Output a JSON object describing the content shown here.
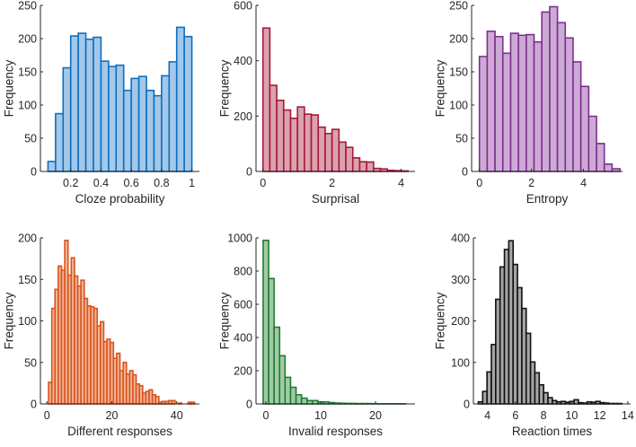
{
  "chart_data": [
    {
      "type": "bar",
      "id": "cloze",
      "xlabel": "Cloze probability",
      "ylabel": "Frequency",
      "bin_start": 0.05,
      "bin_width": 0.05,
      "values": [
        15,
        87,
        156,
        204,
        208,
        199,
        202,
        166,
        158,
        160,
        122,
        140,
        143,
        122,
        114,
        144,
        165,
        217,
        203
      ],
      "xlim": [
        0,
        1.05
      ],
      "ylim": [
        0,
        250
      ],
      "xticks": [
        0.2,
        0.4,
        0.6,
        0.8,
        1
      ],
      "xtick_labels": [
        "0.2",
        "0.4",
        "0.6",
        "0.8",
        "1"
      ],
      "yticks": [
        0,
        50,
        100,
        150,
        200,
        250
      ],
      "fill": "#a3c8ea",
      "edge": "#0f6fbf"
    },
    {
      "type": "bar",
      "id": "surprisal",
      "xlabel": "Surprisal",
      "ylabel": "Frequency",
      "bin_start": 0,
      "bin_width": 0.2,
      "values": [
        518,
        311,
        257,
        222,
        192,
        233,
        207,
        204,
        160,
        137,
        152,
        106,
        87,
        49,
        35,
        34,
        11,
        9,
        4,
        3,
        2
      ],
      "xlim": [
        -0.2,
        4.4
      ],
      "ylim": [
        0,
        600
      ],
      "xticks": [
        0,
        2,
        4
      ],
      "xtick_labels": [
        "0",
        "2",
        "4"
      ],
      "yticks": [
        0,
        200,
        400,
        600
      ],
      "fill": "#dba1ae",
      "edge": "#a3193a"
    },
    {
      "type": "bar",
      "id": "entropy",
      "xlabel": "Entropy",
      "ylabel": "Frequency",
      "bin_start": 0,
      "bin_width": 0.3,
      "values": [
        173,
        211,
        203,
        178,
        208,
        205,
        206,
        195,
        240,
        248,
        224,
        201,
        165,
        128,
        83,
        42,
        11,
        4
      ],
      "xlim": [
        -0.3,
        5.5
      ],
      "ylim": [
        0,
        250
      ],
      "xticks": [
        0,
        2,
        4
      ],
      "xtick_labels": [
        "0",
        "2",
        "4"
      ],
      "yticks": [
        0,
        50,
        100,
        150,
        200,
        250
      ],
      "fill": "#cdaad6",
      "edge": "#7e2f8e"
    },
    {
      "type": "bar",
      "id": "different",
      "xlabel": "Different responses",
      "ylabel": "Frequency",
      "bin_start": 0.5,
      "bin_width": 1,
      "values": [
        26,
        115,
        138,
        166,
        161,
        197,
        155,
        176,
        154,
        142,
        149,
        127,
        118,
        117,
        115,
        94,
        99,
        75,
        78,
        74,
        55,
        61,
        40,
        50,
        36,
        40,
        35,
        24,
        22,
        13,
        15,
        17,
        11,
        9,
        2,
        3,
        3,
        4,
        4,
        0,
        1,
        0,
        0,
        2,
        2
      ],
      "xlim": [
        -2,
        47
      ],
      "ylim": [
        0,
        200
      ],
      "xticks": [
        0,
        20,
        40
      ],
      "xtick_labels": [
        "0",
        "20",
        "40"
      ],
      "yticks": [
        0,
        50,
        100,
        150,
        200
      ],
      "fill": "#f2b595",
      "edge": "#d9531e"
    },
    {
      "type": "bar",
      "id": "invalid",
      "xlabel": "Invalid responses",
      "ylabel": "Frequency",
      "bin_start": -0.5,
      "bin_width": 1,
      "values": [
        985,
        755,
        462,
        290,
        160,
        100,
        55,
        35,
        20,
        20,
        12,
        12,
        8,
        5,
        4,
        3,
        3,
        2,
        2,
        2,
        1,
        1,
        1,
        1,
        1,
        1
      ],
      "xlim": [
        -1.8,
        27.2
      ],
      "ylim": [
        0,
        1000
      ],
      "xticks": [
        0,
        10,
        20
      ],
      "xtick_labels": [
        "0",
        "10",
        "20"
      ],
      "yticks": [
        0,
        200,
        400,
        600,
        800,
        1000
      ],
      "fill": "#a0cba6",
      "edge": "#237a33"
    },
    {
      "type": "bar",
      "id": "reaction",
      "xlabel": "Reaction times",
      "ylabel": "Frequency",
      "bin_start": 3.35,
      "bin_width": 0.31,
      "values": [
        5,
        30,
        77,
        143,
        252,
        330,
        372,
        393,
        336,
        280,
        230,
        170,
        101,
        75,
        46,
        27,
        15,
        8,
        5,
        6,
        4,
        6,
        10,
        3,
        2,
        5,
        4,
        6,
        3,
        2,
        1,
        1,
        1
      ],
      "xlim": [
        3,
        14.2
      ],
      "ylim": [
        0,
        400
      ],
      "xticks": [
        4,
        6,
        8,
        10,
        12,
        14
      ],
      "xtick_labels": [
        "4",
        "6",
        "8",
        "10",
        "12",
        "14"
      ],
      "yticks": [
        0,
        100,
        200,
        300,
        400
      ],
      "fill": "#a6a6a6",
      "edge": "#111111"
    }
  ]
}
